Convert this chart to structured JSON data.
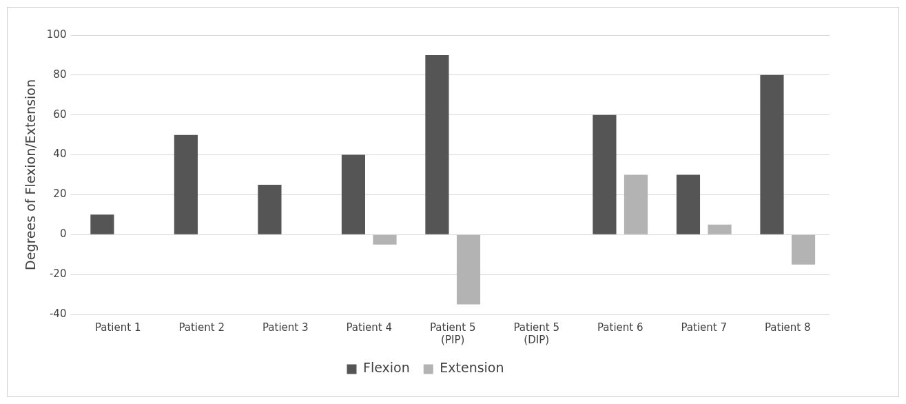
{
  "chart_data": {
    "type": "bar",
    "ylabel": "Degrees of Flexion/Extension",
    "categories": [
      "Patient 1",
      "Patient 2",
      "Patient 3",
      "Patient 4",
      "Patient 5\n(PIP)",
      "Patient 5\n(DIP)",
      "Patient 6",
      "Patient 7",
      "Patient 8"
    ],
    "series": [
      {
        "name": "Flexion",
        "color": "#555555",
        "values": [
          10,
          50,
          25,
          40,
          90,
          0,
          60,
          30,
          80
        ]
      },
      {
        "name": "Extension",
        "color": "#b3b3b3",
        "values": [
          0,
          0,
          0,
          -5,
          -35,
          0,
          30,
          5,
          -15
        ]
      }
    ],
    "ylim": [
      -40,
      100
    ],
    "yticks": [
      -40,
      -20,
      0,
      20,
      40,
      60,
      80,
      100
    ],
    "grid": "y",
    "legend": "bottom"
  }
}
